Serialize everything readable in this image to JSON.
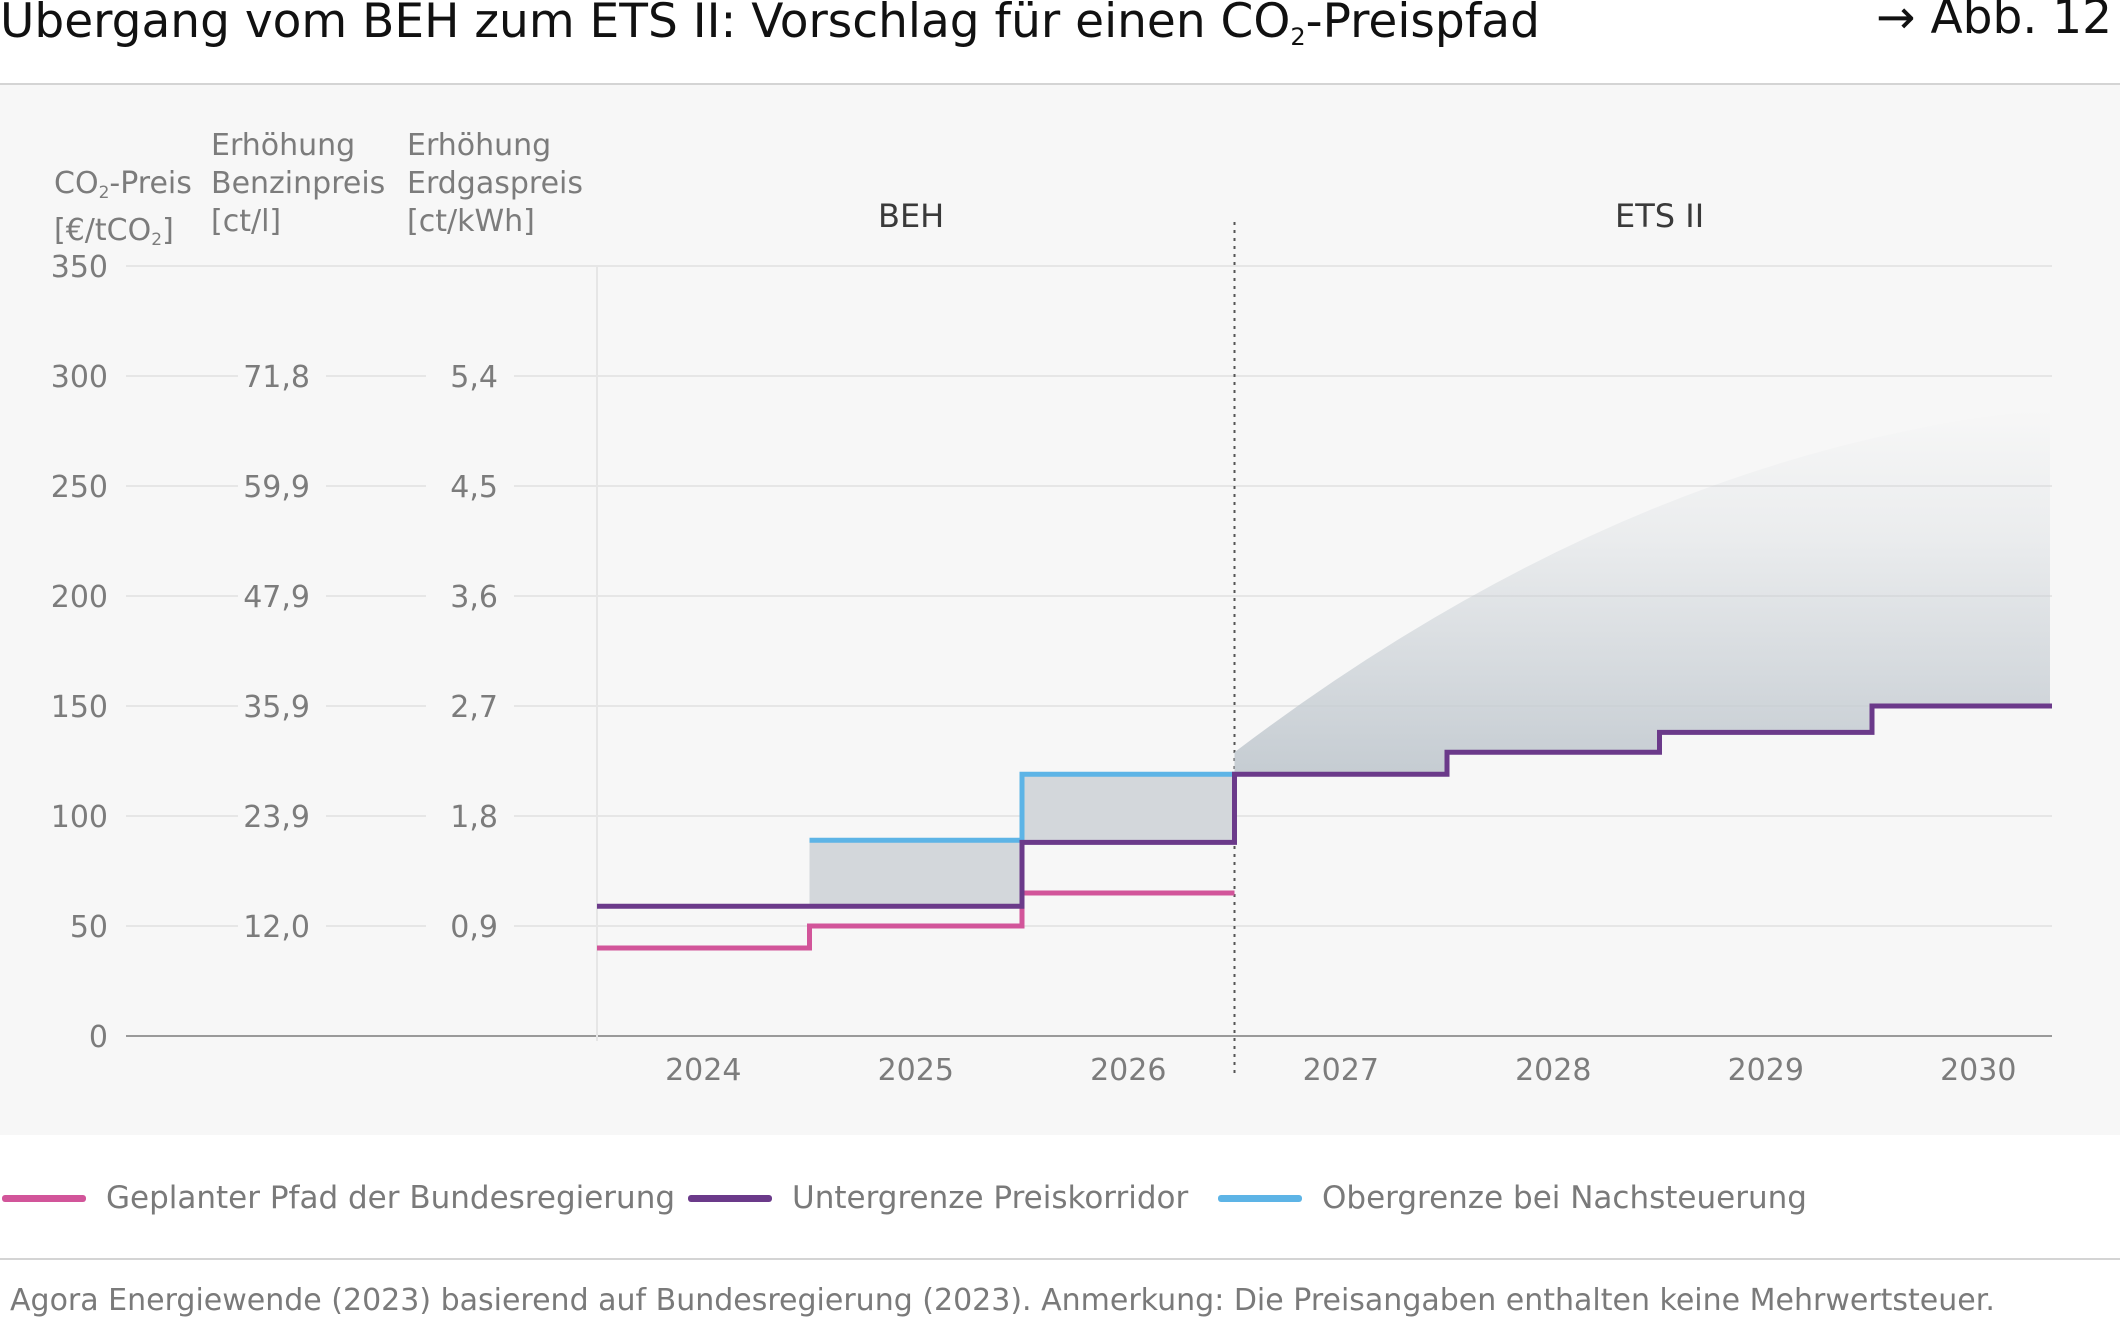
{
  "header": {
    "title_before": "Übergang vom BEH zum ETS II: Vorschlag für einen CO",
    "title_sub": "2",
    "title_after": "-Preispfad",
    "figure_ref": "→ Abb. 12"
  },
  "axis_headers": {
    "co2": {
      "l1_before": "CO",
      "l1_sub": "2",
      "l1_after": "-Preis",
      "l2_before": "[€/tCO",
      "l2_sub": "2",
      "l2_after": "]"
    },
    "benzin": {
      "l1": "Erhöhung",
      "l2": "Benzinpreis",
      "l3": "[ct/l]"
    },
    "erdgas": {
      "l1": "Erhöhung",
      "l2": "Erdgaspreis",
      "l3": "[ct/kWh]"
    }
  },
  "periods": {
    "beh": "BEH",
    "ets": "ETS II"
  },
  "colors": {
    "planned": "#d2559a",
    "lower": "#6b3a8a",
    "upper": "#5db4e6",
    "gap_fill": "#d3d7db",
    "corridor": "#c5ccd2"
  },
  "chart_data": {
    "type": "line",
    "title": "Übergang vom BEH zum ETS II: Vorschlag für einen CO2-Preispfad",
    "ylabel": "CO2-Preis [€/tCO2]",
    "ylim": [
      0,
      350
    ],
    "y_ticks": [
      "0",
      "50",
      "100",
      "150",
      "200",
      "250",
      "300",
      "350"
    ],
    "secondary_axes": [
      {
        "label": "Erhöhung Benzinpreis [ct/l]",
        "ticks": [
          {
            "at": 50,
            "label": "12,0"
          },
          {
            "at": 100,
            "label": "23,9"
          },
          {
            "at": 150,
            "label": "35,9"
          },
          {
            "at": 200,
            "label": "47,9"
          },
          {
            "at": 250,
            "label": "59,9"
          },
          {
            "at": 300,
            "label": "71,8"
          }
        ]
      },
      {
        "label": "Erhöhung Erdgaspreis [ct/kWh]",
        "ticks": [
          {
            "at": 50,
            "label": "0,9"
          },
          {
            "at": 100,
            "label": "1,8"
          },
          {
            "at": 150,
            "label": "2,7"
          },
          {
            "at": 200,
            "label": "3,6"
          },
          {
            "at": 250,
            "label": "4,5"
          },
          {
            "at": 300,
            "label": "5,4"
          }
        ]
      }
    ],
    "categories": [
      "2024",
      "2025",
      "2026",
      "2027",
      "2028",
      "2029",
      "2030"
    ],
    "grid": true,
    "legend_position": "bottom",
    "series": [
      {
        "name": "Geplanter Pfad der Bundesregierung",
        "key": "planned",
        "values": [
          40,
          50,
          65,
          null,
          null,
          null,
          null
        ]
      },
      {
        "name": "Untergrenze Preiskorridor",
        "key": "lower",
        "values": [
          59,
          59,
          88,
          119,
          129,
          138,
          150
        ]
      },
      {
        "name": "Obergrenze bei Nachsteuerung",
        "key": "upper",
        "values": [
          null,
          89,
          119,
          null,
          null,
          null,
          null
        ]
      }
    ],
    "corridor_upper_2030": 285,
    "annotations": [
      "BEH",
      "ETS II"
    ]
  },
  "source": "Agora Energiewende (2023) basierend auf Bundesregierung (2023). Anmerkung: Die Preisangaben enthalten keine Mehrwertsteuer."
}
